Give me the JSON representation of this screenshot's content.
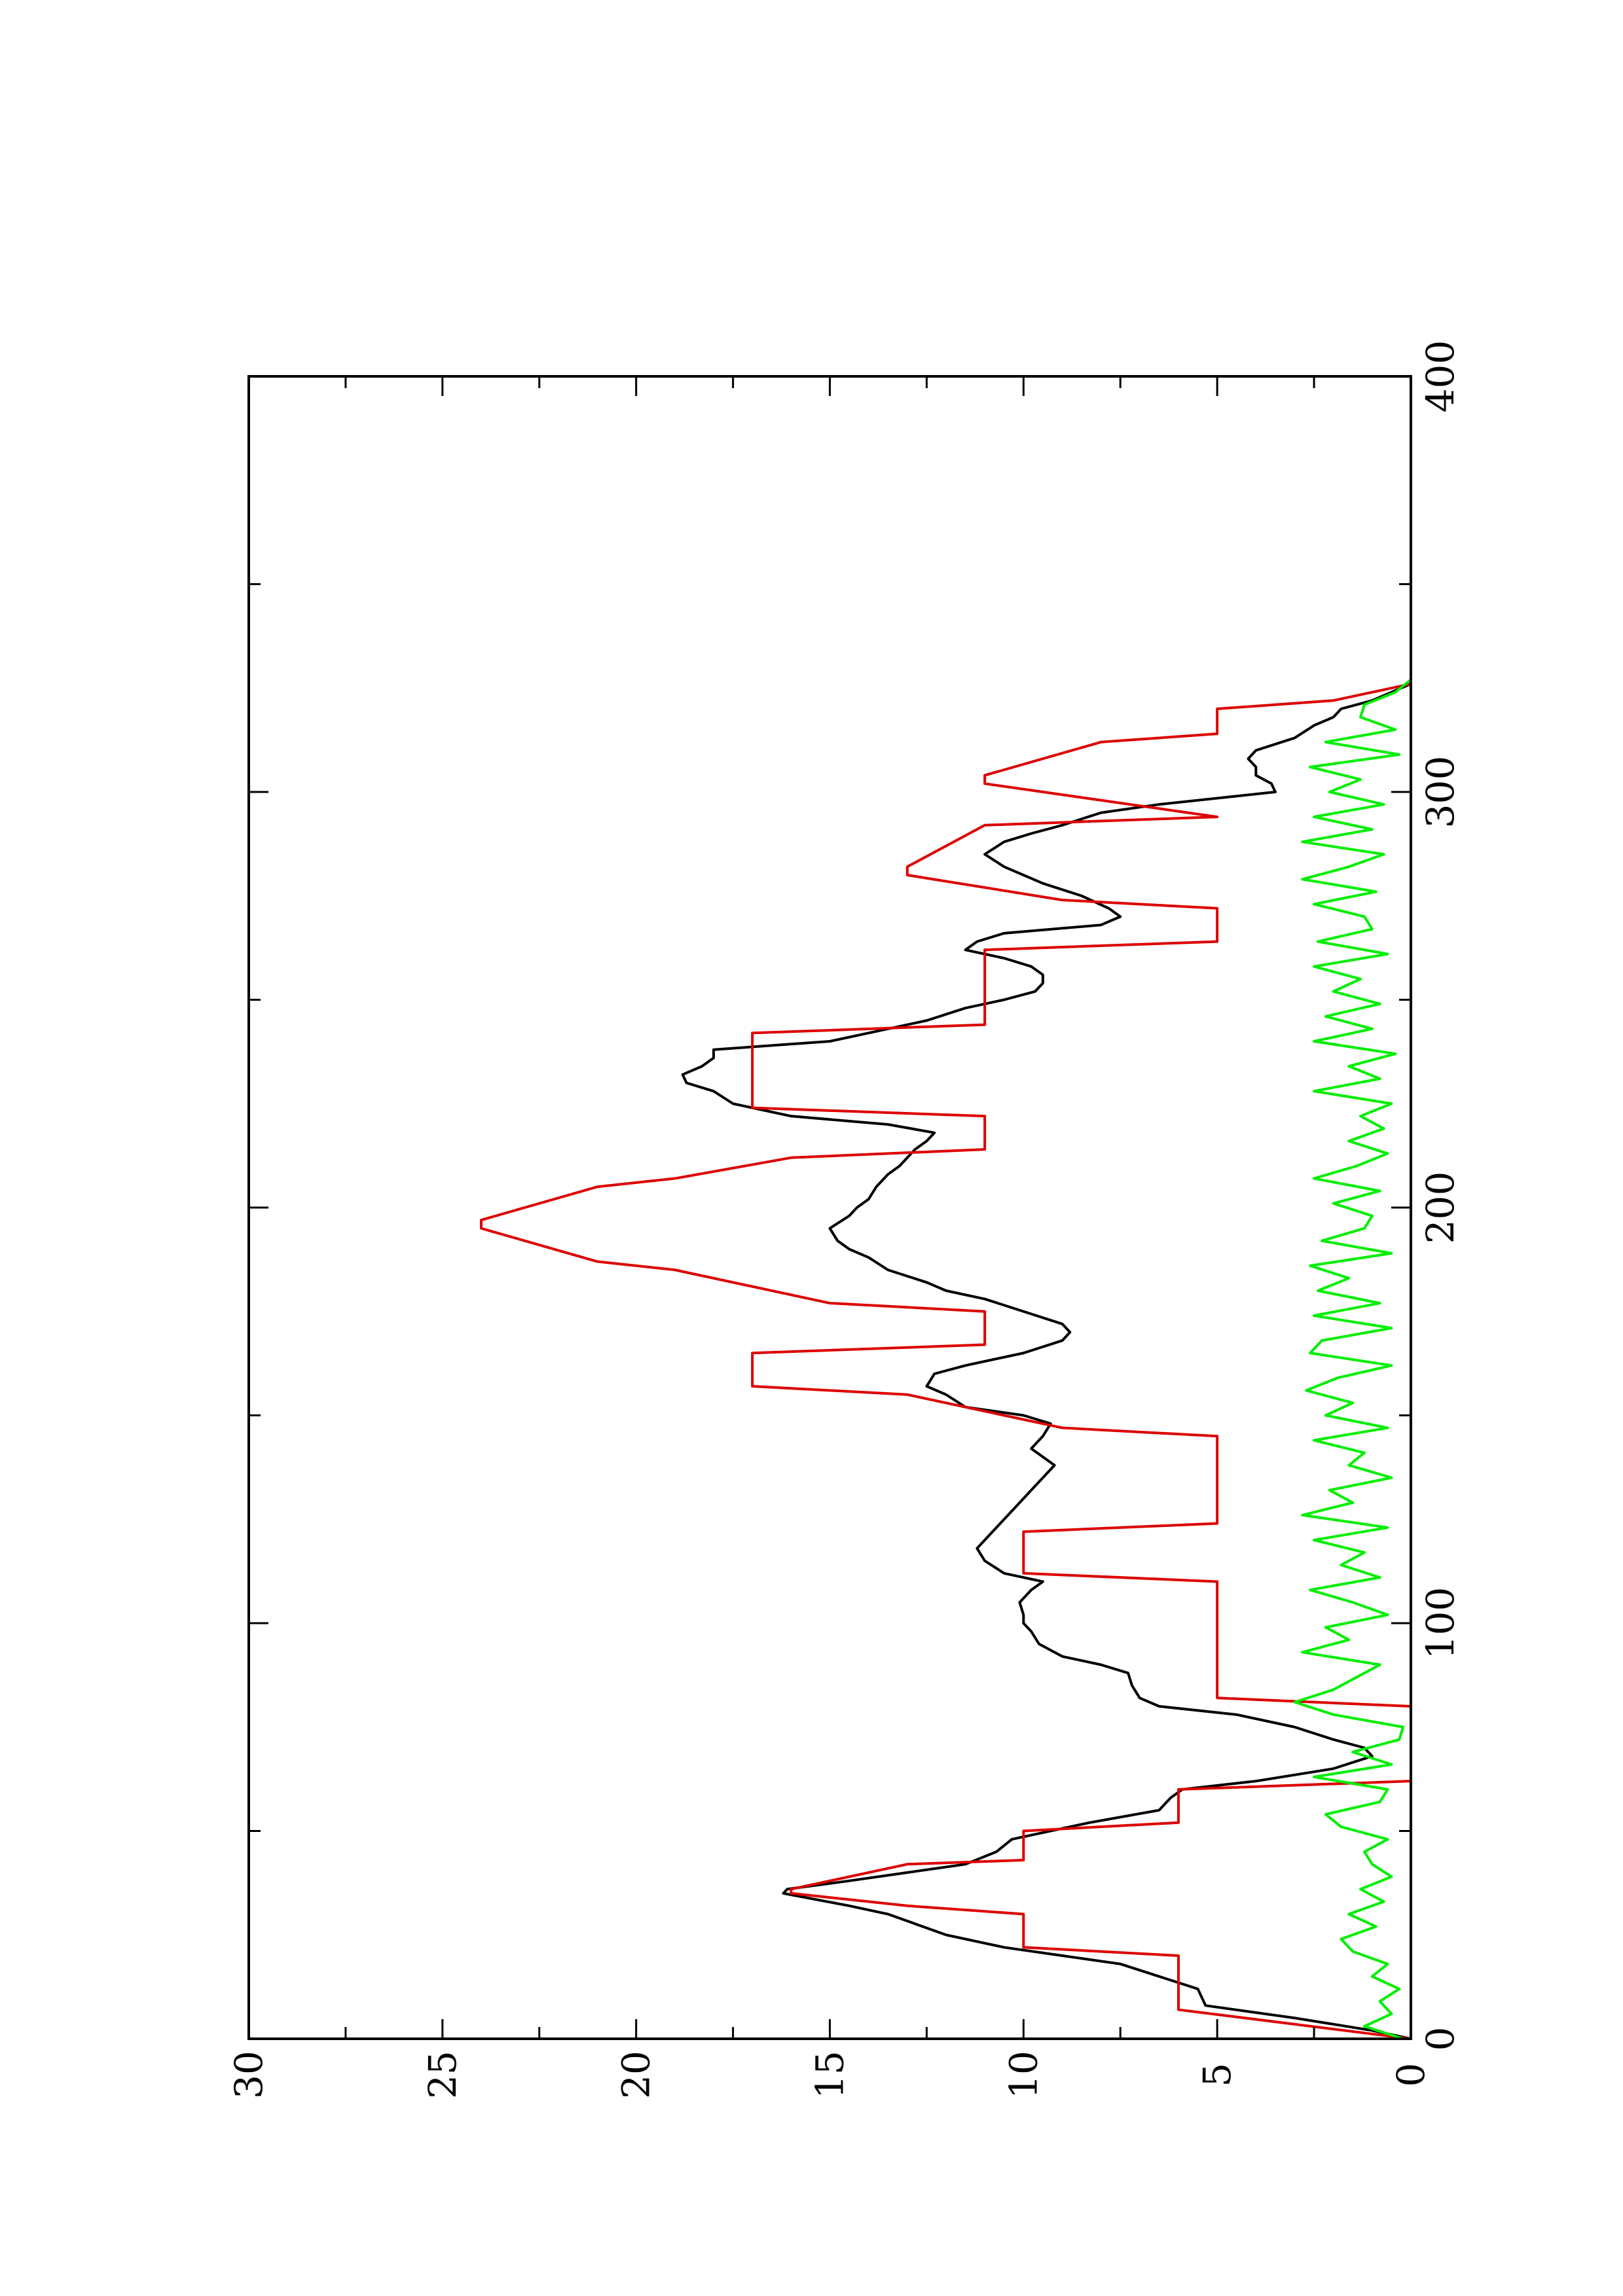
{
  "chart_data": {
    "type": "line",
    "orientation": "rotated-90-ccw",
    "title": "",
    "xlabel": "",
    "ylabel": "",
    "xlim": [
      0,
      400
    ],
    "ylim": [
      0,
      30
    ],
    "x_ticks": [
      0,
      100,
      200,
      300,
      400
    ],
    "y_ticks": [
      0,
      5,
      10,
      15,
      20,
      25,
      30
    ],
    "grid": false,
    "legend": "none",
    "series": [
      {
        "color": "#000000",
        "x": [
          0,
          2,
          5,
          8,
          12,
          18,
          20,
          22,
          25,
          30,
          32,
          35,
          36,
          38,
          40,
          42,
          45,
          48,
          52,
          55,
          58,
          60,
          62,
          65,
          68,
          70,
          72,
          75,
          78,
          80,
          82,
          85,
          88,
          90,
          92,
          95,
          98,
          100,
          102,
          105,
          108,
          110,
          112,
          115,
          118,
          120,
          122,
          125,
          128,
          130,
          132,
          135,
          138,
          140,
          142,
          145,
          148,
          150,
          152,
          155,
          157,
          160,
          162,
          165,
          168,
          170,
          172,
          175,
          178,
          180,
          182,
          185,
          188,
          190,
          192,
          195,
          198,
          200,
          202,
          205,
          208,
          210,
          212,
          214,
          216,
          218,
          220,
          222,
          225,
          228,
          230,
          232,
          234,
          236,
          238,
          240,
          242,
          245,
          248,
          250,
          252,
          254,
          256,
          258,
          260,
          262,
          264,
          266,
          268,
          270,
          272,
          275,
          278,
          280,
          282,
          285,
          288,
          290,
          292,
          295,
          297,
          299,
          300,
          302,
          304,
          306,
          308,
          310,
          313,
          316,
          318,
          320,
          322,
          324,
          326
        ],
        "y": [
          0,
          1,
          3,
          5.3,
          5.5,
          7.5,
          9,
          10.5,
          12,
          13.5,
          14.5,
          16.2,
          16.1,
          14.5,
          13,
          11.5,
          10.7,
          10.3,
          8.3,
          6.5,
          6.2,
          5.9,
          4,
          2,
          1,
          1.2,
          2,
          3,
          4.5,
          6.5,
          7,
          7.2,
          7.3,
          8,
          9,
          9.6,
          9.8,
          10,
          10,
          10.1,
          9.8,
          9.5,
          10.5,
          11,
          11.2,
          11,
          10.8,
          10.5,
          10.2,
          10,
          9.8,
          9.5,
          9.2,
          9.5,
          9.8,
          9.5,
          9.3,
          10,
          11.5,
          12,
          12.5,
          12.3,
          11.5,
          10,
          9,
          8.8,
          9,
          10,
          11,
          12,
          12.5,
          13.5,
          14,
          14.5,
          14.8,
          15,
          14.5,
          14.3,
          14,
          13.8,
          13.5,
          13.2,
          13,
          12.8,
          12.5,
          12.3,
          13.5,
          16,
          17.5,
          18,
          18.7,
          18.8,
          18.3,
          18,
          18,
          15,
          14,
          12.5,
          11.5,
          10.5,
          9.7,
          9.5,
          9.5,
          9.8,
          10.5,
          11.5,
          11.2,
          10.5,
          8,
          7.5,
          7.8,
          8.5,
          9.5,
          10,
          10.5,
          11,
          10.5,
          9.8,
          9,
          8,
          6.5,
          4.5,
          3.5,
          3.6,
          4,
          4,
          4.2,
          4,
          3,
          2.5,
          2,
          1.8,
          1,
          0.5,
          0
        ]
      },
      {
        "color": "#dd0000",
        "x": [
          0,
          7,
          10,
          20,
          22,
          30,
          32,
          35,
          36,
          42,
          43,
          50,
          52,
          60,
          62,
          70,
          72,
          80,
          82,
          90,
          92,
          110,
          112,
          122,
          124,
          135,
          137,
          145,
          147,
          155,
          157,
          165,
          167,
          175,
          177,
          185,
          187,
          195,
          197,
          205,
          207,
          212,
          214,
          222,
          224,
          242,
          244,
          262,
          264,
          272,
          274,
          280,
          282,
          292,
          294,
          302,
          304,
          312,
          314,
          320,
          322,
          326
        ],
        "y": [
          0,
          6,
          6,
          6,
          10,
          10,
          13,
          16,
          16,
          13,
          10,
          10,
          6,
          6,
          0,
          0,
          0,
          0,
          5,
          5,
          5,
          5,
          10,
          10,
          5,
          5,
          5,
          5,
          9,
          13,
          17,
          17,
          11,
          11,
          15,
          19,
          21,
          24,
          24,
          21,
          19,
          16,
          11,
          11,
          17,
          17,
          11,
          11,
          5,
          5,
          9,
          13,
          13,
          11,
          5,
          11,
          11,
          8,
          5,
          5,
          2,
          0
        ]
      },
      {
        "color": "#00ee00",
        "x": [
          0,
          3,
          6,
          9,
          12,
          15,
          18,
          21,
          24,
          27,
          30,
          33,
          36,
          39,
          42,
          45,
          48,
          51,
          54,
          57,
          60,
          63,
          66,
          69,
          72,
          75,
          78,
          81,
          84,
          87,
          90,
          93,
          96,
          99,
          102,
          105,
          108,
          111,
          114,
          117,
          120,
          123,
          126,
          129,
          132,
          135,
          138,
          141,
          144,
          147,
          150,
          153,
          156,
          159,
          162,
          165,
          168,
          171,
          174,
          177,
          180,
          183,
          186,
          189,
          192,
          195,
          198,
          201,
          204,
          207,
          210,
          213,
          216,
          219,
          222,
          225,
          228,
          231,
          234,
          237,
          240,
          243,
          246,
          249,
          252,
          255,
          258,
          261,
          264,
          267,
          270,
          273,
          276,
          279,
          282,
          285,
          288,
          291,
          294,
          297,
          300,
          303,
          306,
          309,
          312,
          315,
          318,
          321,
          324,
          327
        ],
        "y": [
          0.2,
          1.2,
          0.5,
          0.8,
          0.3,
          1,
          0.6,
          1.5,
          1.8,
          0.9,
          1.6,
          0.7,
          1.3,
          0.5,
          1,
          1.2,
          0.6,
          1.8,
          2.2,
          0.8,
          0.6,
          2.5,
          0.5,
          1.5,
          0.3,
          0.2,
          2,
          3,
          2,
          1.4,
          0.8,
          2.8,
          1.6,
          2.2,
          0.6,
          1.5,
          2.6,
          0.8,
          1.8,
          1.2,
          2.5,
          0.6,
          2.8,
          1.5,
          2.1,
          0.5,
          1.6,
          1.2,
          2.5,
          0.6,
          2.2,
          1.5,
          2.7,
          1.9,
          0.5,
          2.6,
          2.3,
          0.5,
          2.5,
          0.8,
          2.4,
          1.6,
          2.6,
          0.5,
          2.3,
          1.2,
          1,
          2,
          0.8,
          2.5,
          1.4,
          0.6,
          1.6,
          0.7,
          1.3,
          0.5,
          2.5,
          0.8,
          1.6,
          0.4,
          2.5,
          1,
          2.2,
          0.8,
          2,
          1.3,
          2.5,
          0.6,
          2.4,
          1,
          1.2,
          2.5,
          0.9,
          2.8,
          1.6,
          0.7,
          2.8,
          1,
          2.5,
          0.7,
          2.1,
          1.3,
          2.6,
          0.3,
          2.2,
          0.4,
          1.3,
          1.2,
          0.4,
          0
        ]
      }
    ]
  }
}
